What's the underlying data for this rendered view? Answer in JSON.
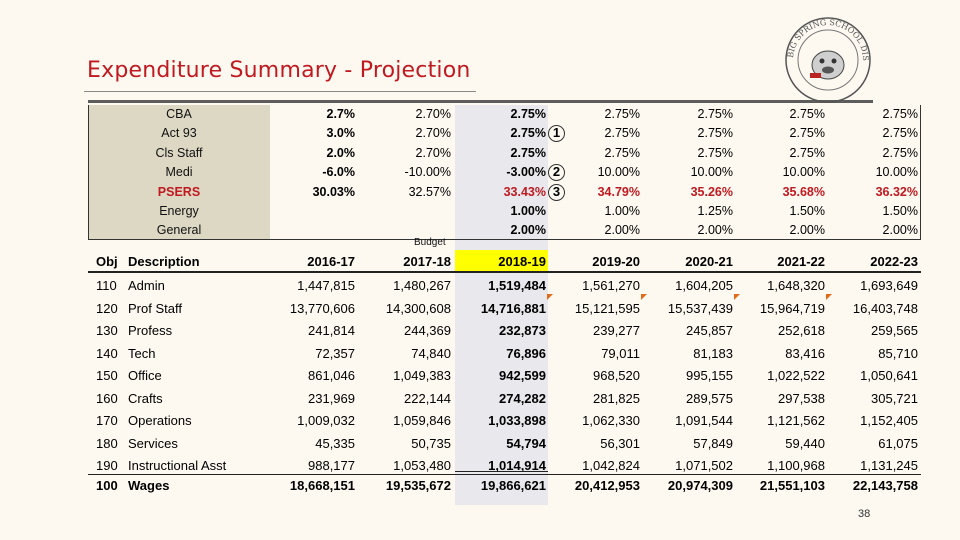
{
  "slide": {
    "title": "Expenditure Summary - Projection",
    "page_number": "38",
    "logo_text": "BIG SPRING SCHOOL DISTRICT"
  },
  "assumptions": {
    "budget_label": "Budget",
    "rows": [
      {
        "label": "CBA",
        "vals": [
          "2.7%",
          "2.70%",
          "2.75%",
          "2.75%",
          "2.75%",
          "2.75%",
          "2.75%"
        ]
      },
      {
        "label": "Act 93",
        "vals": [
          "3.0%",
          "2.70%",
          "2.75%",
          "2.75%",
          "2.75%",
          "2.75%",
          "2.75%"
        ]
      },
      {
        "label": "Cls Staff",
        "vals": [
          "2.0%",
          "2.70%",
          "2.75%",
          "2.75%",
          "2.75%",
          "2.75%",
          "2.75%"
        ]
      },
      {
        "label": "Medi",
        "vals": [
          "-6.0%",
          "-10.00%",
          "-3.00%",
          "10.00%",
          "10.00%",
          "10.00%",
          "10.00%"
        ]
      },
      {
        "label": "PSERS",
        "vals": [
          "30.03%",
          "32.57%",
          "33.43%",
          "34.79%",
          "35.26%",
          "35.68%",
          "36.32%"
        ]
      },
      {
        "label": "Energy",
        "vals": [
          "",
          "",
          "1.00%",
          "1.00%",
          "1.25%",
          "1.50%",
          "1.50%"
        ]
      },
      {
        "label": "General",
        "vals": [
          "",
          "",
          "2.00%",
          "2.00%",
          "2.00%",
          "2.00%",
          "2.00%"
        ]
      }
    ],
    "callouts": [
      "1",
      "2",
      "3"
    ]
  },
  "table": {
    "headers": [
      "Obj",
      "Description",
      "2016-17",
      "2017-18",
      "2018-19",
      "2019-20",
      "2020-21",
      "2021-22",
      "2022-23"
    ],
    "rows": [
      {
        "obj": "110",
        "desc": "Admin",
        "vals": [
          "1,447,815",
          "1,480,267",
          "1,519,484",
          "1,561,270",
          "1,604,205",
          "1,648,320",
          "1,693,649"
        ]
      },
      {
        "obj": "120",
        "desc": "Prof Staff",
        "vals": [
          "13,770,606",
          "14,300,608",
          "14,716,881",
          "15,121,595",
          "15,537,439",
          "15,964,719",
          "16,403,748"
        ]
      },
      {
        "obj": "130",
        "desc": "Profess",
        "vals": [
          "241,814",
          "244,369",
          "232,873",
          "239,277",
          "245,857",
          "252,618",
          "259,565"
        ]
      },
      {
        "obj": "140",
        "desc": "Tech",
        "vals": [
          "72,357",
          "74,840",
          "76,896",
          "79,011",
          "81,183",
          "83,416",
          "85,710"
        ]
      },
      {
        "obj": "150",
        "desc": "Office",
        "vals": [
          "861,046",
          "1,049,383",
          "942,599",
          "968,520",
          "995,155",
          "1,022,522",
          "1,050,641"
        ]
      },
      {
        "obj": "160",
        "desc": "Crafts",
        "vals": [
          "231,969",
          "222,144",
          "274,282",
          "281,825",
          "289,575",
          "297,538",
          "305,721"
        ]
      },
      {
        "obj": "170",
        "desc": "Operations",
        "vals": [
          "1,009,032",
          "1,059,846",
          "1,033,898",
          "1,062,330",
          "1,091,544",
          "1,121,562",
          "1,152,405"
        ]
      },
      {
        "obj": "180",
        "desc": "Services",
        "vals": [
          "45,335",
          "50,735",
          "54,794",
          "56,301",
          "57,849",
          "59,440",
          "61,075"
        ]
      },
      {
        "obj": "190",
        "desc": "Instructional Asst",
        "vals": [
          "988,177",
          "1,053,480",
          "1,014,914",
          "1,042,824",
          "1,071,502",
          "1,100,968",
          "1,131,245"
        ]
      }
    ],
    "total": {
      "obj": "100",
      "desc": "Wages",
      "vals": [
        "18,668,151",
        "19,535,672",
        "19,866,621",
        "20,412,953",
        "20,974,309",
        "21,551,103",
        "22,143,758"
      ]
    }
  },
  "colors": {
    "title": "#c0191f",
    "highlight": "#ffff00",
    "psers": "#c0191f",
    "assumption_bg": "#ddd8c4"
  }
}
